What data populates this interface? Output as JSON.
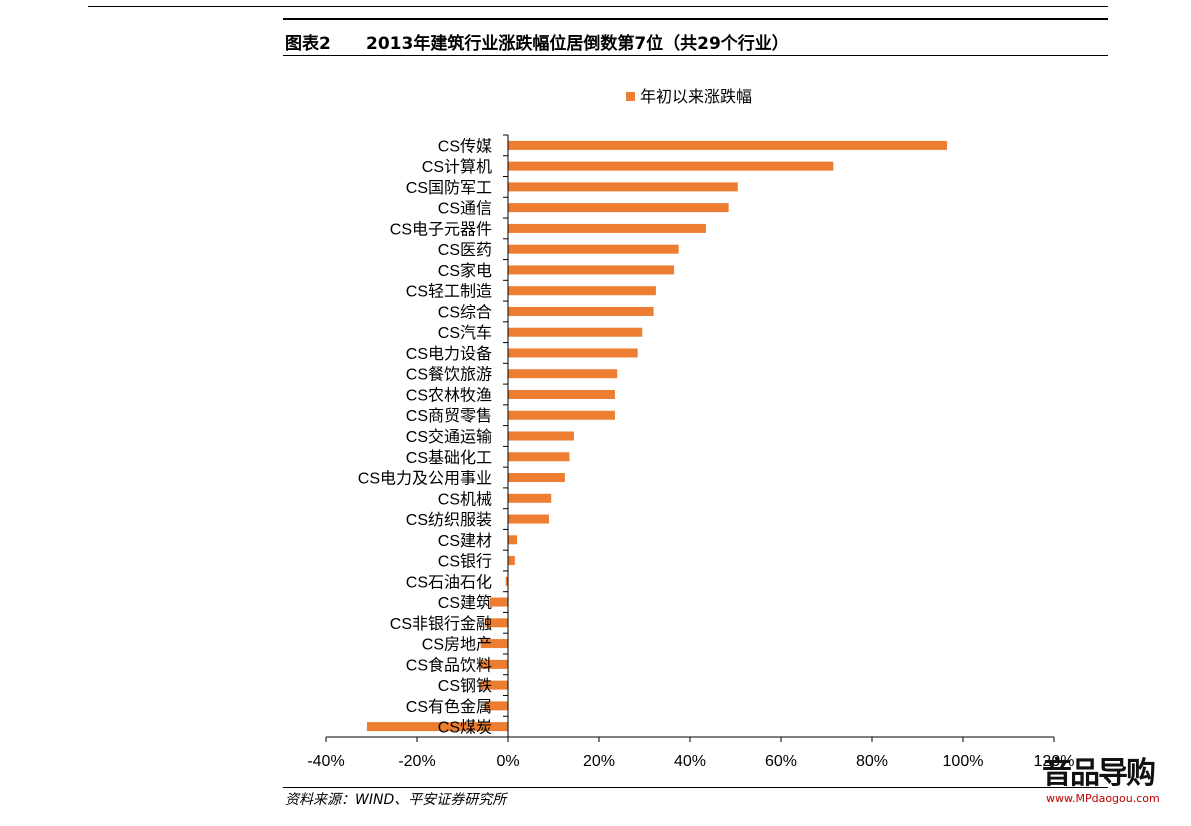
{
  "header": {
    "figure_label": "图表2",
    "title": "2013年建筑行业涨跌幅位居倒数第7位（共29个行业）"
  },
  "footer": {
    "source": "资料来源：WIND、平安证券研究所"
  },
  "watermark": {
    "text": "音品导购",
    "url": "www.MPdaogou.com"
  },
  "chart_data": {
    "type": "bar",
    "orientation": "horizontal",
    "categories": [
      "CS传媒",
      "CS计算机",
      "CS国防军工",
      "CS通信",
      "CS电子元器件",
      "CS医药",
      "CS家电",
      "CS轻工制造",
      "CS综合",
      "CS汽车",
      "CS电力设备",
      "CS餐饮旅游",
      "CS农林牧渔",
      "CS商贸零售",
      "CS交通运输",
      "CS基础化工",
      "CS电力及公用事业",
      "CS机械",
      "CS纺织服装",
      "CS建材",
      "CS银行",
      "CS石油石化",
      "CS建筑",
      "CS非银行金融",
      "CS房地产",
      "CS食品饮料",
      "CS钢铁",
      "CS有色金属",
      "CS煤炭"
    ],
    "series": [
      {
        "name": "年初以来涨跌幅",
        "values": [
          96.5,
          71.5,
          50.5,
          48.5,
          43.5,
          37.5,
          36.5,
          32.5,
          32.0,
          29.5,
          28.5,
          24.0,
          23.5,
          23.5,
          14.5,
          13.5,
          12.5,
          9.5,
          9.0,
          2.0,
          1.5,
          -0.5,
          -4.0,
          -5.0,
          -6.0,
          -6.0,
          -6.0,
          -5.0,
          -31.0
        ],
        "color": "#ED7D31"
      }
    ],
    "xlim": [
      -40,
      120
    ],
    "xticks": [
      -40,
      -20,
      0,
      20,
      40,
      60,
      80,
      100,
      120
    ],
    "xtick_labels": [
      "-40%",
      "-20%",
      "0%",
      "20%",
      "40%",
      "60%",
      "80%",
      "100%",
      "120%"
    ],
    "legend_position": "top-center",
    "grid": false
  }
}
